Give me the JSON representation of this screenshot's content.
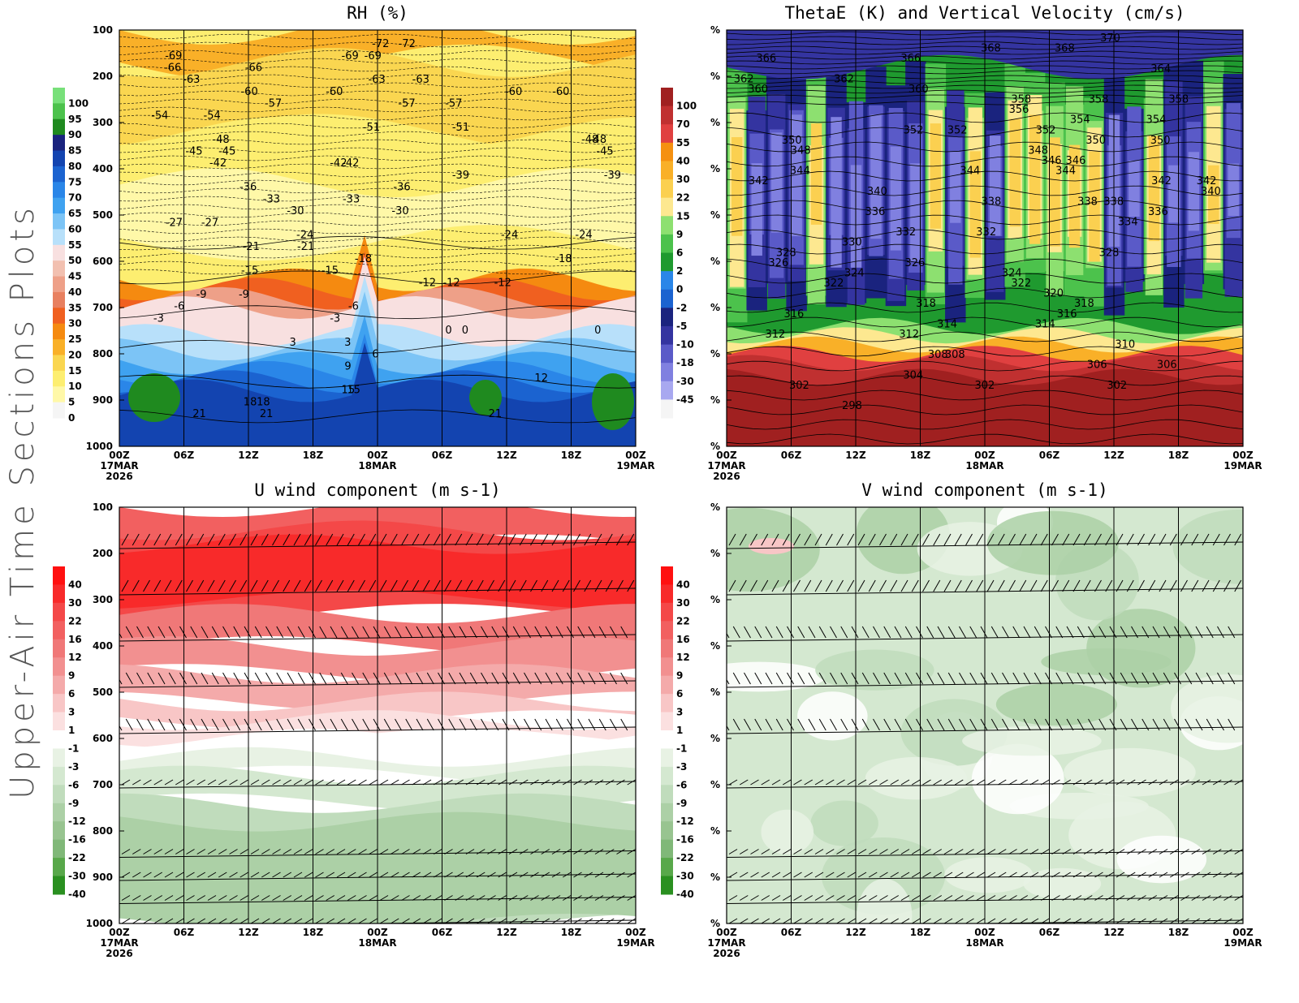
{
  "side_title": "Upper-Air Time Sections Plots",
  "chart_data": [
    {
      "type": "heatmap",
      "title": "RH (%)",
      "yticks": [
        "100",
        "200",
        "300",
        "400",
        "500",
        "600",
        "700",
        "800",
        "900",
        "1000"
      ],
      "xticks": [
        "00Z",
        "06Z",
        "12Z",
        "18Z",
        "00Z",
        "06Z",
        "12Z",
        "18Z",
        "00Z"
      ],
      "xticks2": [
        "17MAR",
        "",
        "",
        "",
        "18MAR",
        "",
        "",
        "",
        "19MAR"
      ],
      "year": "2026",
      "colorbar": {
        "labels": [
          "100",
          "95",
          "90",
          "85",
          "80",
          "75",
          "70",
          "65",
          "60",
          "55",
          "50",
          "45",
          "40",
          "35",
          "30",
          "25",
          "20",
          "15",
          "10",
          "5",
          "0"
        ],
        "colors": [
          "#78e07a",
          "#4cc24c",
          "#1f8a1f",
          "#1a237e",
          "#1344b0",
          "#1b63d0",
          "#2a86e8",
          "#3fa2f0",
          "#7cc4f6",
          "#b8e0fa",
          "#f8e0e0",
          "#f2c0b0",
          "#eea088",
          "#e88060",
          "#f06020",
          "#f58a10",
          "#f9b028",
          "#fad650",
          "#fdee70",
          "#fff8a8",
          "#f5f5f5"
        ]
      },
      "contour_labels": [
        "-69",
        "-72",
        "-63",
        "-66",
        "-69",
        "-72",
        "-69",
        "-60",
        "-63",
        "-60",
        "-57",
        "-60",
        "-57",
        "-66",
        "-63",
        "-60",
        "-51",
        "-54",
        "-57",
        "-51",
        "-48",
        "-54",
        "-48",
        "-45",
        "-45",
        "-42",
        "-48",
        "-45",
        "-42",
        "-36",
        "-39",
        "-33",
        "-42",
        "-39",
        "-33",
        "-36",
        "-30",
        "-30",
        "-27",
        "-24",
        "-21",
        "-24",
        "-27",
        "-24",
        "-21",
        "-18",
        "-18",
        "-15",
        "-12",
        "-15",
        "-12",
        "-12",
        "-9",
        "-9",
        "-6",
        "-6",
        "-3",
        "-3",
        "0",
        "0",
        "0",
        "3",
        "3",
        "6",
        "9",
        "12",
        "15",
        "15",
        "18",
        "18",
        "21",
        "21",
        "21"
      ]
    },
    {
      "type": "heatmap",
      "title": "ThetaE (K) and Vertical Velocity (cm/s)",
      "yticks": [
        "%",
        "%",
        "%",
        "%",
        "%",
        "%",
        "%",
        "%",
        "%",
        "%"
      ],
      "xticks": [
        "00Z",
        "06Z",
        "12Z",
        "18Z",
        "00Z",
        "06Z",
        "12Z",
        "18Z",
        "00Z"
      ],
      "xticks2": [
        "17MAR",
        "",
        "",
        "",
        "18MAR",
        "",
        "",
        "",
        "19MAR"
      ],
      "year": "2026",
      "colorbar": {
        "labels": [
          "100",
          "70",
          "55",
          "40",
          "30",
          "22",
          "15",
          "9",
          "6",
          "2",
          "0",
          "-2",
          "-5",
          "-10",
          "-18",
          "-30",
          "-45"
        ],
        "colors": [
          "#a02020",
          "#c03030",
          "#e04040",
          "#f59010",
          "#f9b028",
          "#fbd050",
          "#fde890",
          "#8de070",
          "#4cc24c",
          "#1f9a2f",
          "#2a86e8",
          "#1b63d0",
          "#1a237e",
          "#3434a0",
          "#5a5ac8",
          "#8080e0",
          "#a8a8f0",
          "#f5f5f5"
        ]
      },
      "contour_labels": [
        "370",
        "362",
        "352",
        "366",
        "368",
        "358",
        "360",
        "354",
        "350",
        "348",
        "352",
        "366",
        "358",
        "354",
        "350",
        "352",
        "360",
        "368",
        "362",
        "364",
        "356",
        "358",
        "348",
        "350",
        "344",
        "346",
        "342",
        "340",
        "338",
        "336",
        "334",
        "332",
        "330",
        "328",
        "326",
        "324",
        "322",
        "320",
        "318",
        "316",
        "314",
        "312",
        "310",
        "308",
        "306",
        "304",
        "302",
        "302",
        "302",
        "298",
        "346",
        "344",
        "342",
        "338",
        "336",
        "332",
        "328",
        "326",
        "324",
        "322",
        "318",
        "316",
        "314",
        "312",
        "308",
        "306",
        "344",
        "342",
        "340",
        "338"
      ]
    },
    {
      "type": "heatmap",
      "title": "U wind component (m s-1)",
      "yticks": [
        "100",
        "200",
        "300",
        "400",
        "500",
        "600",
        "700",
        "800",
        "900",
        "1000"
      ],
      "xticks": [
        "00Z",
        "06Z",
        "12Z",
        "18Z",
        "00Z",
        "06Z",
        "12Z",
        "18Z",
        "00Z"
      ],
      "xticks2": [
        "17MAR",
        "",
        "",
        "",
        "18MAR",
        "",
        "",
        "",
        "19MAR"
      ],
      "year": "2026",
      "colorbar": {
        "labels": [
          "40",
          "30",
          "22",
          "16",
          "12",
          "9",
          "6",
          "3",
          "1",
          "-1",
          "-3",
          "-6",
          "-9",
          "-12",
          "-16",
          "-22",
          "-30",
          "-40"
        ],
        "colors": [
          "#ff1010",
          "#f82a2a",
          "#f44848",
          "#f26060",
          "#f07878",
          "#f29090",
          "#f4aaaa",
          "#f8c6c6",
          "#fbe0e0",
          "#ffffff",
          "#e8f2e4",
          "#d4e8d0",
          "#c0dcbc",
          "#acd0a6",
          "#98c490",
          "#80b878",
          "#58a84a",
          "#2a9020"
        ]
      }
    },
    {
      "type": "heatmap",
      "title": "V wind component (m s-1)",
      "yticks": [
        "%",
        "%",
        "%",
        "%",
        "%",
        "%",
        "%",
        "%",
        "%",
        "%"
      ],
      "xticks": [
        "00Z",
        "06Z",
        "12Z",
        "18Z",
        "00Z",
        "06Z",
        "12Z",
        "18Z",
        "00Z"
      ],
      "xticks2": [
        "17MAR",
        "",
        "",
        "",
        "18MAR",
        "",
        "",
        "",
        "19MAR"
      ],
      "year": "2026",
      "colorbar": {
        "labels": [
          "40",
          "30",
          "22",
          "16",
          "12",
          "9",
          "6",
          "3",
          "1",
          "-1",
          "-3",
          "-6",
          "-9",
          "-12",
          "-16",
          "-22",
          "-30",
          "-40"
        ],
        "colors": [
          "#ff1010",
          "#f82a2a",
          "#f44848",
          "#f26060",
          "#f07878",
          "#f29090",
          "#f4aaaa",
          "#f8c6c6",
          "#fbe0e0",
          "#ffffff",
          "#e8f2e4",
          "#d4e8d0",
          "#c0dcbc",
          "#acd0a6",
          "#98c490",
          "#80b878",
          "#58a84a",
          "#2a9020"
        ]
      }
    }
  ]
}
